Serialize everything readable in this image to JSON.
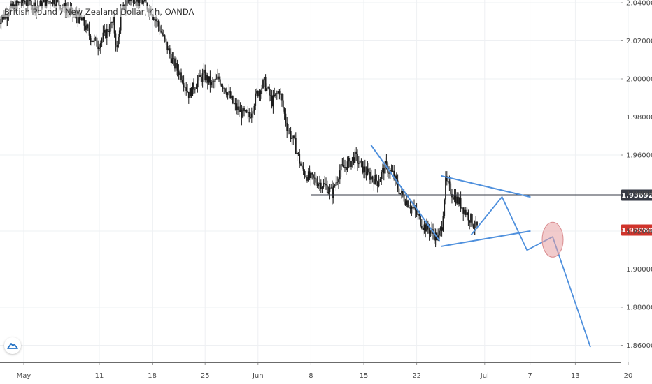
{
  "chart_data": {
    "type": "candlestick",
    "title": "British Pound / New Zealand Dollar, 4h, OANDA",
    "symbol": "GBPNZD",
    "timeframe": "4h",
    "broker": "OANDA",
    "ylim": [
      1.845,
      2.043
    ],
    "y_ticks": [
      "2.04000",
      "2.02000",
      "2.00000",
      "1.98000",
      "1.96000",
      "1.94000",
      "1.92000",
      "1.90000",
      "1.88000",
      "1.86000"
    ],
    "x_ticks": [
      {
        "label": "May",
        "day": 0
      },
      {
        "label": "11",
        "day": 10
      },
      {
        "label": "18",
        "day": 17
      },
      {
        "label": "25",
        "day": 24
      },
      {
        "label": "Jun",
        "day": 31
      },
      {
        "label": "8",
        "day": 38
      },
      {
        "label": "15",
        "day": 45
      },
      {
        "label": "22",
        "day": 52
      },
      {
        "label": "Jul",
        "day": 61
      },
      {
        "label": "7",
        "day": 67
      },
      {
        "label": "13",
        "day": 73
      },
      {
        "label": "20",
        "day": 80
      }
    ],
    "price_path": [
      [
        -10,
        2.04
      ],
      [
        -8,
        2.03
      ],
      [
        -6,
        2.036
      ],
      [
        -4,
        2.028
      ],
      [
        -2,
        2.035
      ],
      [
        0,
        2.041
      ],
      [
        2,
        2.038
      ],
      [
        4,
        2.042
      ],
      [
        6,
        2.036
      ],
      [
        8,
        2.03
      ],
      [
        9,
        2.022
      ],
      [
        10,
        2.018
      ],
      [
        11,
        2.024
      ],
      [
        12,
        2.03
      ],
      [
        12.5,
        2.015
      ],
      [
        13,
        2.034
      ],
      [
        14,
        2.042
      ],
      [
        15,
        2.043
      ],
      [
        16,
        2.04
      ],
      [
        17,
        2.036
      ],
      [
        18,
        2.028
      ],
      [
        19,
        2.018
      ],
      [
        20,
        2.008
      ],
      [
        21,
        2.002
      ],
      [
        22,
        1.992
      ],
      [
        23,
        1.998
      ],
      [
        24,
        2.002
      ],
      [
        25,
        1.997
      ],
      [
        26,
        2.0
      ],
      [
        27,
        1.994
      ],
      [
        28,
        1.986
      ],
      [
        29,
        1.982
      ],
      [
        30,
        1.98
      ],
      [
        31,
        1.992
      ],
      [
        32,
        1.998
      ],
      [
        33,
        1.988
      ],
      [
        34,
        1.994
      ],
      [
        35,
        1.975
      ],
      [
        36,
        1.966
      ],
      [
        37,
        1.952
      ],
      [
        38,
        1.948
      ],
      [
        39,
        1.946
      ],
      [
        40,
        1.944
      ],
      [
        41,
        1.94
      ],
      [
        42,
        1.952
      ],
      [
        43,
        1.955
      ],
      [
        44,
        1.959
      ],
      [
        45,
        1.953
      ],
      [
        46,
        1.949
      ],
      [
        47,
        1.946
      ],
      [
        48,
        1.954
      ],
      [
        49,
        1.95
      ],
      [
        50,
        1.94
      ],
      [
        51,
        1.935
      ],
      [
        52,
        1.93
      ],
      [
        53,
        1.923
      ],
      [
        54,
        1.92
      ],
      [
        55,
        1.916
      ],
      [
        55.5,
        1.923
      ],
      [
        56,
        1.946
      ],
      [
        57,
        1.939
      ],
      [
        58,
        1.934
      ],
      [
        59,
        1.928
      ],
      [
        60,
        1.922
      ]
    ],
    "horizontal_lines": [
      {
        "name": "resistance",
        "value": 1.93892,
        "label": "1.93892",
        "color": "#363a45",
        "style": "solid",
        "from_day": 38
      },
      {
        "name": "last-price",
        "value": 1.9206,
        "label": "1.92060",
        "color": "#d0342c",
        "style": "dotted"
      }
    ],
    "drawings": {
      "color": "#4f90dd",
      "descending_trendline": [
        [
          46,
          1.965
        ],
        [
          55,
          1.915
        ]
      ],
      "triangle_upper": [
        [
          55.3,
          1.949
        ],
        [
          67,
          1.938
        ]
      ],
      "triangle_lower": [
        [
          55.3,
          1.912
        ],
        [
          67,
          1.92
        ]
      ],
      "projection_path": [
        [
          59.2,
          1.918
        ],
        [
          63.3,
          1.938
        ],
        [
          66.6,
          1.91
        ],
        [
          70,
          1.917
        ],
        [
          75,
          1.859
        ]
      ]
    },
    "highlight_ellipse": {
      "center": [
        70,
        1.9155
      ],
      "color": "#e8a0a3"
    },
    "grid": true,
    "legend": "none"
  }
}
